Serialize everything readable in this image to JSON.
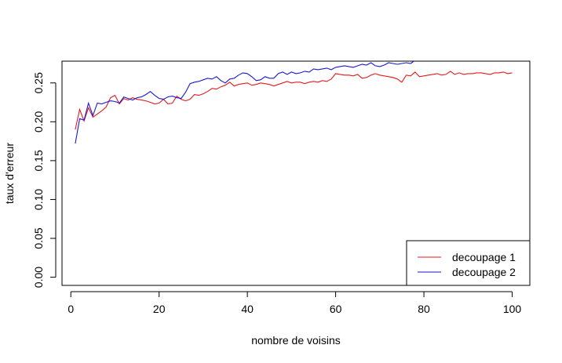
{
  "chart_data": {
    "type": "line",
    "title": "",
    "xlabel": "nombre de voisins",
    "ylabel": "taux d'erreur",
    "xlim": [
      -2,
      104
    ],
    "ylim": [
      -0.0105,
      0.278
    ],
    "x_ticks": [
      0,
      20,
      40,
      60,
      80,
      100
    ],
    "x_tick_labels": [
      "0",
      "20",
      "40",
      "60",
      "80",
      "100"
    ],
    "y_ticks": [
      0.0,
      0.05,
      0.1,
      0.15,
      0.2,
      0.25
    ],
    "y_tick_labels": [
      "0.00",
      "0.05",
      "0.10",
      "0.15",
      "0.20",
      "0.25"
    ],
    "grid": false,
    "legend_position": "bottom-right",
    "series": [
      {
        "name": "decoupage 1",
        "color": "#e41a1c",
        "x": [
          1,
          2,
          3,
          4,
          5,
          6,
          7,
          8,
          9,
          10,
          11,
          12,
          13,
          14,
          15,
          16,
          17,
          18,
          19,
          20,
          21,
          22,
          23,
          24,
          25,
          26,
          27,
          28,
          29,
          30,
          31,
          32,
          33,
          34,
          35,
          36,
          37,
          38,
          39,
          40,
          41,
          42,
          43,
          44,
          45,
          46,
          47,
          48,
          49,
          50,
          51,
          52,
          53,
          54,
          55,
          56,
          57,
          58,
          59,
          60,
          61,
          62,
          63,
          64,
          65,
          66,
          67,
          68,
          69,
          70,
          71,
          72,
          73,
          74,
          75,
          76,
          77,
          78,
          79,
          80,
          81,
          82,
          83,
          84,
          85,
          86,
          87,
          88,
          89,
          90,
          91,
          92,
          93,
          94,
          95,
          96,
          97,
          98,
          99,
          100
        ],
        "values": [
          0.19,
          0.216,
          0.201,
          0.218,
          0.206,
          0.21,
          0.214,
          0.219,
          0.231,
          0.234,
          0.223,
          0.23,
          0.228,
          0.231,
          0.229,
          0.228,
          0.227,
          0.225,
          0.223,
          0.224,
          0.229,
          0.223,
          0.224,
          0.233,
          0.229,
          0.227,
          0.229,
          0.235,
          0.234,
          0.236,
          0.239,
          0.243,
          0.242,
          0.245,
          0.247,
          0.251,
          0.246,
          0.248,
          0.249,
          0.25,
          0.247,
          0.248,
          0.25,
          0.249,
          0.248,
          0.246,
          0.248,
          0.25,
          0.252,
          0.25,
          0.251,
          0.251,
          0.249,
          0.251,
          0.252,
          0.251,
          0.253,
          0.252,
          0.255,
          0.262,
          0.261,
          0.26,
          0.26,
          0.259,
          0.261,
          0.256,
          0.257,
          0.26,
          0.262,
          0.26,
          0.259,
          0.258,
          0.257,
          0.255,
          0.251,
          0.26,
          0.259,
          0.264,
          0.258,
          0.259,
          0.26,
          0.261,
          0.262,
          0.26,
          0.261,
          0.265,
          0.261,
          0.263,
          0.261,
          0.262,
          0.262,
          0.263,
          0.263,
          0.262,
          0.261,
          0.263,
          0.263,
          0.264,
          0.262,
          0.263
        ]
      },
      {
        "name": "decoupage 2",
        "color": "#1a1ad0",
        "x": [
          1,
          2,
          3,
          4,
          5,
          6,
          7,
          8,
          9,
          10,
          11,
          12,
          13,
          14,
          15,
          16,
          17,
          18,
          19,
          20,
          21,
          22,
          23,
          24,
          25,
          26,
          27,
          28,
          29,
          30,
          31,
          32,
          33,
          34,
          35,
          36,
          37,
          38,
          39,
          40,
          41,
          42,
          43,
          44,
          45,
          46,
          47,
          48,
          49,
          50,
          51,
          52,
          53,
          54,
          55,
          56,
          57,
          58,
          59,
          60,
          61,
          62,
          63,
          64,
          65,
          66,
          67,
          68,
          69,
          70,
          71,
          72,
          73,
          74,
          75,
          76,
          77,
          78
        ],
        "values": [
          0.172,
          0.204,
          0.202,
          0.224,
          0.208,
          0.224,
          0.223,
          0.225,
          0.227,
          0.226,
          0.224,
          0.232,
          0.23,
          0.228,
          0.231,
          0.232,
          0.235,
          0.239,
          0.234,
          0.23,
          0.229,
          0.232,
          0.233,
          0.231,
          0.23,
          0.238,
          0.249,
          0.251,
          0.252,
          0.254,
          0.256,
          0.255,
          0.258,
          0.253,
          0.25,
          0.255,
          0.256,
          0.26,
          0.263,
          0.262,
          0.258,
          0.253,
          0.254,
          0.258,
          0.256,
          0.256,
          0.262,
          0.264,
          0.261,
          0.264,
          0.262,
          0.263,
          0.265,
          0.264,
          0.268,
          0.267,
          0.268,
          0.269,
          0.267,
          0.27,
          0.271,
          0.272,
          0.271,
          0.27,
          0.272,
          0.274,
          0.273,
          0.276,
          0.272,
          0.271,
          0.273,
          0.276,
          0.275,
          0.274,
          0.275,
          0.276,
          0.275,
          0.279
        ]
      }
    ]
  }
}
